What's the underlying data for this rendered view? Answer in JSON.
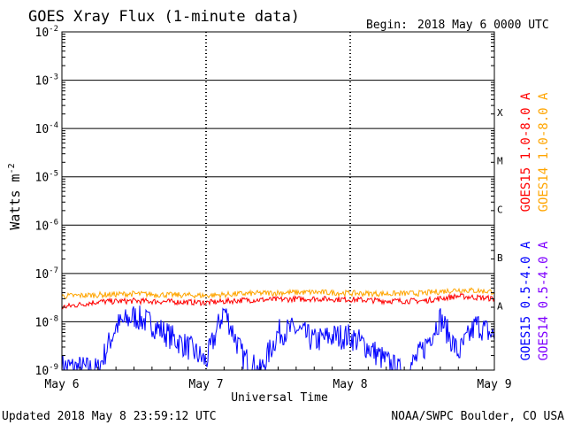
{
  "header": {
    "title": "GOES Xray Flux (1-minute data)",
    "begin_label": "Begin:",
    "begin_value": "2018 May 6 0000 UTC"
  },
  "footer": {
    "updated": "Updated 2018 May  8 23:59:12 UTC",
    "credit": "NOAA/SWPC Boulder, CO USA"
  },
  "chart_data": {
    "type": "line",
    "title": "GOES Xray Flux (1-minute data)",
    "xlabel": "Universal Time",
    "ylabel": "Watts m",
    "ylabel_superscript": "-2",
    "y_scale": "log",
    "ylim": [
      1e-09,
      0.01
    ],
    "y_ticks": [
      {
        "value": 1e-09,
        "exp": "-9"
      },
      {
        "value": 1e-08,
        "exp": "-8"
      },
      {
        "value": 1e-07,
        "exp": "-7"
      },
      {
        "value": 1e-06,
        "exp": "-6"
      },
      {
        "value": 1e-05,
        "exp": "-5"
      },
      {
        "value": 0.0001,
        "exp": "-4"
      },
      {
        "value": 0.001,
        "exp": "-3"
      },
      {
        "value": 0.01,
        "exp": "-2"
      }
    ],
    "y_tick_base": "10",
    "xlim": [
      "2018-05-06",
      "2018-05-09"
    ],
    "x_ticks": [
      {
        "date": "2018-05-06",
        "label": "May 6"
      },
      {
        "date": "2018-05-07",
        "label": "May 7"
      },
      {
        "date": "2018-05-08",
        "label": "May 8"
      },
      {
        "date": "2018-05-09",
        "label": "May 9"
      }
    ],
    "flare_classes": [
      {
        "label": "A",
        "value": 1e-08
      },
      {
        "label": "B",
        "value": 1e-07
      },
      {
        "label": "C",
        "value": 1e-06
      },
      {
        "label": "M",
        "value": 1e-05
      },
      {
        "label": "X",
        "value": 0.0001
      }
    ],
    "legend_placement": "right",
    "series": [
      {
        "name": "GOES15 1.0-8.0 A",
        "color": "#ff0000",
        "x": [
          "2018-05-06 00:00",
          "2018-05-06 06:00",
          "2018-05-06 12:00",
          "2018-05-06 18:00",
          "2018-05-07 00:00",
          "2018-05-07 06:00",
          "2018-05-07 12:00",
          "2018-05-07 18:00",
          "2018-05-08 00:00",
          "2018-05-08 06:00",
          "2018-05-08 12:00",
          "2018-05-08 18:00",
          "2018-05-09 00:00"
        ],
        "values": [
          2e-08,
          2.6e-08,
          2.7e-08,
          2.6e-08,
          2.5e-08,
          2.8e-08,
          2.9e-08,
          3e-08,
          2.9e-08,
          2.7e-08,
          2.7e-08,
          3.4e-08,
          3e-08
        ]
      },
      {
        "name": "GOES14 1.0-8.0 A",
        "color": "#ffa500",
        "x": [
          "2018-05-06 00:00",
          "2018-05-06 06:00",
          "2018-05-06 12:00",
          "2018-05-06 18:00",
          "2018-05-07 00:00",
          "2018-05-07 06:00",
          "2018-05-07 12:00",
          "2018-05-07 18:00",
          "2018-05-08 00:00",
          "2018-05-08 06:00",
          "2018-05-08 12:00",
          "2018-05-08 18:00",
          "2018-05-09 00:00"
        ],
        "values": [
          3.4e-08,
          3.6e-08,
          3.8e-08,
          3.6e-08,
          3.5e-08,
          3.8e-08,
          4e-08,
          4.1e-08,
          3.9e-08,
          3.8e-08,
          3.9e-08,
          4.6e-08,
          4.2e-08
        ]
      },
      {
        "name": "GOES15 0.5-4.0 A",
        "color": "#0000ff",
        "x": [
          "2018-05-06 00:00",
          "2018-05-06 03:00",
          "2018-05-06 06:00",
          "2018-05-06 09:00",
          "2018-05-06 12:00",
          "2018-05-06 15:00",
          "2018-05-06 18:00",
          "2018-05-06 21:00",
          "2018-05-07 00:00",
          "2018-05-07 03:00",
          "2018-05-07 06:00",
          "2018-05-07 09:00",
          "2018-05-07 12:00",
          "2018-05-07 15:00",
          "2018-05-07 18:00",
          "2018-05-07 21:00",
          "2018-05-08 00:00",
          "2018-05-08 03:00",
          "2018-05-08 06:00",
          "2018-05-08 09:00",
          "2018-05-08 12:00",
          "2018-05-08 15:00",
          "2018-05-08 18:00",
          "2018-05-08 21:00",
          "2018-05-09 00:00"
        ],
        "values": [
          1.2e-09,
          1.1e-09,
          1e-09,
          8e-09,
          1.3e-08,
          9e-09,
          5e-09,
          3e-09,
          1.5e-09,
          1.8e-08,
          2e-09,
          9e-10,
          6e-09,
          7e-09,
          4e-09,
          5e-09,
          5e-09,
          3e-09,
          1.5e-09,
          8e-10,
          2.5e-09,
          1.2e-08,
          2.2e-09,
          9e-09,
          5e-09
        ]
      },
      {
        "name": "GOES14 0.5-4.0 A",
        "color": "#7f00ff",
        "x": [],
        "values": []
      }
    ]
  }
}
